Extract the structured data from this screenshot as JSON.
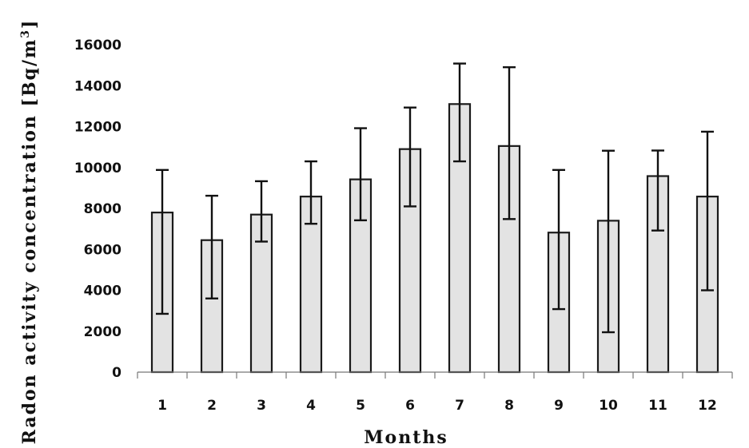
{
  "chart_data": {
    "type": "bar",
    "xlabel": "Months",
    "ylabel_main": "Radon activity concentration [Bq/m",
    "ylabel_sup": "3",
    "ylabel_end": "]",
    "ylim": [
      0,
      16000
    ],
    "yticks": [
      "0",
      "2000",
      "4000",
      "6000",
      "8000",
      "10000",
      "12000",
      "14000",
      "16000"
    ],
    "categories": [
      "1",
      "2",
      "3",
      "4",
      "5",
      "6",
      "7",
      "8",
      "9",
      "10",
      "11",
      "12"
    ],
    "values": [
      7800,
      6450,
      7700,
      8580,
      9420,
      10900,
      13100,
      11050,
      6820,
      7400,
      9580,
      8580
    ],
    "error_low": [
      2850,
      3600,
      6380,
      7250,
      7420,
      8100,
      10300,
      7480,
      3080,
      1950,
      6920,
      4000
    ],
    "error_high": [
      9880,
      8620,
      9330,
      10300,
      11920,
      12930,
      15080,
      14900,
      9880,
      10820,
      10830,
      11750
    ],
    "bar_color": "#e3e3e3",
    "grid": false
  }
}
